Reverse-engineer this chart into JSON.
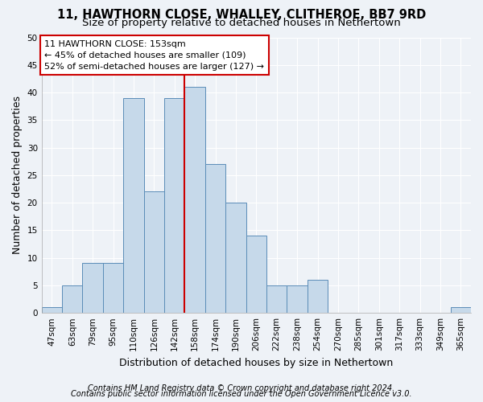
{
  "title_line1": "11, HAWTHORN CLOSE, WHALLEY, CLITHEROE, BB7 9RD",
  "title_line2": "Size of property relative to detached houses in Nethertown",
  "xlabel": "Distribution of detached houses by size in Nethertown",
  "ylabel": "Number of detached properties",
  "categories": [
    "47sqm",
    "63sqm",
    "79sqm",
    "95sqm",
    "110sqm",
    "126sqm",
    "142sqm",
    "158sqm",
    "174sqm",
    "190sqm",
    "206sqm",
    "222sqm",
    "238sqm",
    "254sqm",
    "270sqm",
    "285sqm",
    "301sqm",
    "317sqm",
    "333sqm",
    "349sqm",
    "365sqm"
  ],
  "values": [
    1,
    5,
    9,
    9,
    39,
    22,
    39,
    41,
    27,
    20,
    14,
    5,
    5,
    6,
    0,
    0,
    0,
    0,
    0,
    0,
    1
  ],
  "bar_color": "#c6d9ea",
  "bar_edge_color": "#5b8db8",
  "vline_x": 6.5,
  "vline_color": "#cc0000",
  "annotation_text": "11 HAWTHORN CLOSE: 153sqm\n← 45% of detached houses are smaller (109)\n52% of semi-detached houses are larger (127) →",
  "annotation_box_color": "#ffffff",
  "annotation_box_edge": "#cc0000",
  "ylim": [
    0,
    50
  ],
  "yticks": [
    0,
    5,
    10,
    15,
    20,
    25,
    30,
    35,
    40,
    45,
    50
  ],
  "footer_line1": "Contains HM Land Registry data © Crown copyright and database right 2024.",
  "footer_line2": "Contains public sector information licensed under the Open Government Licence v3.0.",
  "bg_color": "#eef2f7",
  "grid_color": "#ffffff",
  "title_fontsize": 10.5,
  "subtitle_fontsize": 9.5,
  "ylabel_fontsize": 9,
  "xlabel_fontsize": 9,
  "tick_fontsize": 7.5,
  "annot_fontsize": 8,
  "footer_fontsize": 7
}
